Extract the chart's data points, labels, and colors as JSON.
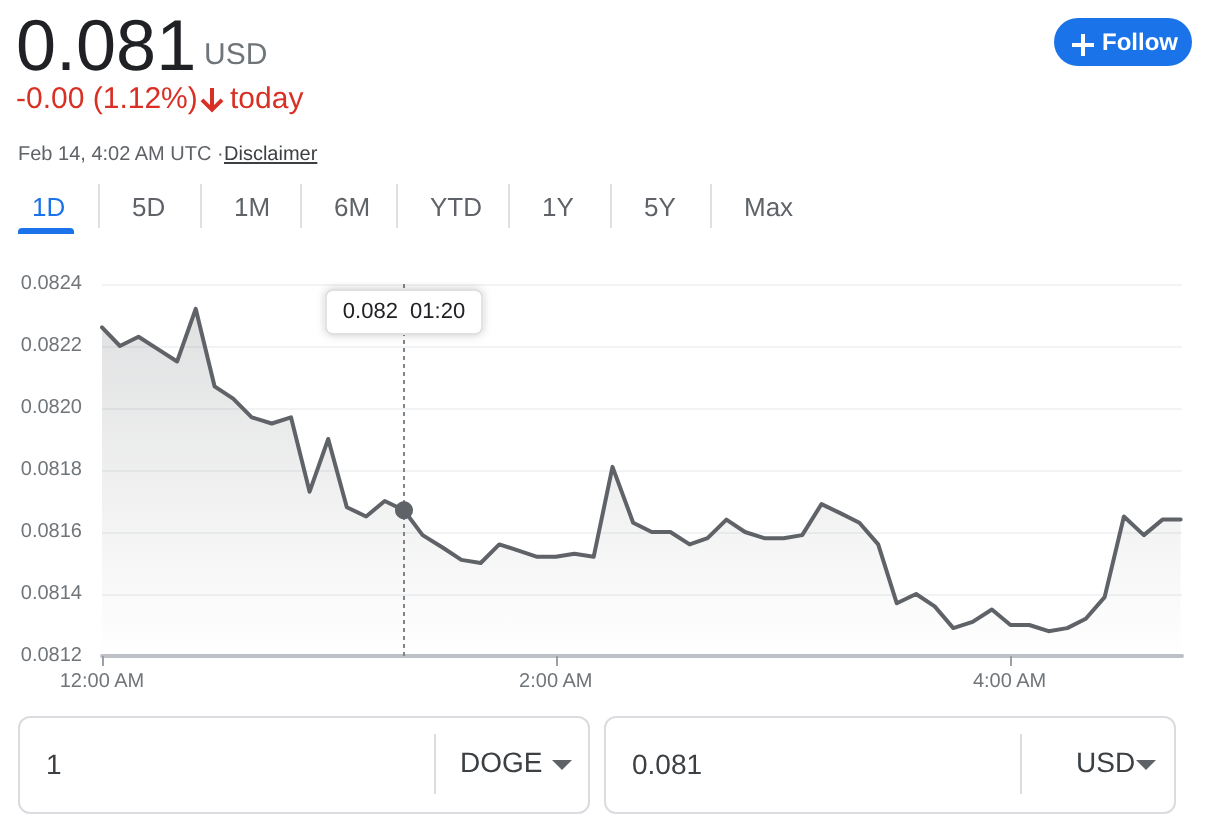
{
  "chart_data": {
    "type": "area",
    "title": "0.081",
    "subtitle": "USD",
    "annotations": [
      "-0.00 (1.12%)",
      "today",
      "Feb 14, 4:02 AM UTC · ",
      "Disclaimer",
      "1D",
      "5D",
      "1M",
      "6M",
      "YTD",
      "1Y",
      "5Y",
      "Max",
      "Follow",
      "1",
      "DOGE",
      "0.081",
      "USD",
      "0.082  01:20"
    ],
    "x": [
      0,
      0.079,
      0.161,
      0.246,
      0.331,
      0.413,
      0.496,
      0.578,
      0.66,
      0.748,
      0.833,
      0.915,
      0.997,
      1.079,
      1.164,
      1.246,
      1.331,
      1.413,
      1.501,
      1.584,
      1.669,
      1.751,
      1.836,
      1.918,
      2.0,
      2.082,
      2.167,
      2.25,
      2.341,
      2.423,
      2.505,
      2.59,
      2.669,
      2.752,
      2.834,
      2.919,
      3.004,
      3.086,
      3.171,
      3.256,
      3.338,
      3.421,
      3.503,
      3.588,
      3.67,
      3.752,
      3.837,
      3.922,
      4.004,
      4.087,
      4.172,
      4.254,
      4.336,
      4.419,
      4.504,
      4.592,
      4.674,
      4.754
    ],
    "series": [
      {
        "color": "#5f6368",
        "values": [
          0.08226,
          0.0822,
          0.08223,
          0.08219,
          0.08215,
          0.08232,
          0.08207,
          0.08203,
          0.08197,
          0.08195,
          0.08197,
          0.08173,
          0.0819,
          0.08168,
          0.08165,
          0.0817,
          0.08167,
          0.08159,
          0.08155,
          0.08151,
          0.0815,
          0.08156,
          0.08154,
          0.08152,
          0.08152,
          0.08153,
          0.08152,
          0.08181,
          0.08163,
          0.0816,
          0.0816,
          0.08156,
          0.08158,
          0.08164,
          0.0816,
          0.08158,
          0.08158,
          0.08159,
          0.08169,
          0.08166,
          0.08163,
          0.08156,
          0.08137,
          0.0814,
          0.08136,
          0.08129,
          0.08131,
          0.08135,
          0.0813,
          0.0813,
          0.08128,
          0.08129,
          0.08132,
          0.08139,
          0.08165,
          0.08159,
          0.08164,
          0.08164
        ]
      }
    ],
    "xlim": [
      0,
      4.76
    ],
    "xticks": [
      {
        "value": 0,
        "label": "12:00 AM"
      },
      {
        "value": 2,
        "label": "2:00 AM"
      },
      {
        "value": 4,
        "label": "4:00 AM"
      }
    ],
    "ylim": [
      0.0812,
      0.0824
    ],
    "yticks": [
      0.0812,
      0.0814,
      0.0816,
      0.0818,
      {
        "value": 0.082,
        "label": "0.0820"
      },
      0.0822,
      0.0824
    ],
    "ref_lines": [
      {
        "axis": "x",
        "value": 1.331,
        "line_style": "dotted",
        "color": "#80868b"
      }
    ],
    "grid": "y",
    "marker": "none",
    "line_style": "solid"
  }
}
